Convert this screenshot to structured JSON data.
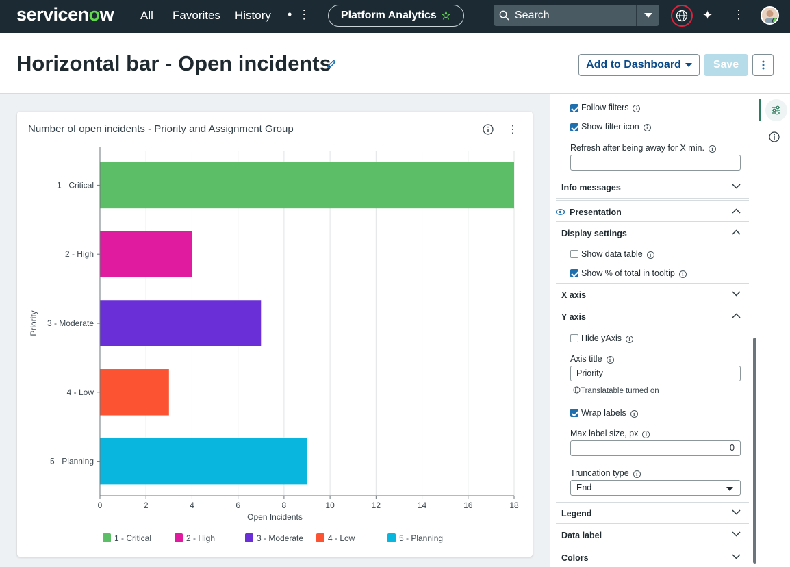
{
  "nav": {
    "logo_a": "servicen",
    "logo_o": "o",
    "logo_b": "w",
    "links": [
      "All",
      "Favorites",
      "History"
    ],
    "more": "• ⋮",
    "app_pill": "Platform Analytics",
    "search_placeholder": "Search"
  },
  "page": {
    "title": "Horizontal bar - Open incidents",
    "add_to_dashboard": "Add to Dashboard",
    "save": "Save"
  },
  "card": {
    "title": "Number of open incidents - Priority and Assignment Group"
  },
  "chart_data": {
    "type": "bar",
    "orientation": "horizontal",
    "categories": [
      "1 - Critical",
      "2 - High",
      "3 - Moderate",
      "4 - Low",
      "5 - Planning"
    ],
    "values": [
      18,
      4,
      7,
      3,
      9
    ],
    "colors": [
      "#5cbf67",
      "#e01ba0",
      "#6a2fd6",
      "#fc5432",
      "#09b6dd"
    ],
    "xlabel": "Open Incidents",
    "ylabel": "Priority",
    "xlim": [
      0,
      18
    ],
    "xticks": [
      0,
      2,
      4,
      6,
      8,
      10,
      12,
      14,
      16,
      18
    ],
    "grid": "vertical",
    "legend": "bottom",
    "legend_entries": [
      "1 - Critical",
      "2 - High",
      "3 - Moderate",
      "4 - Low",
      "5 - Planning"
    ]
  },
  "panel": {
    "follow_filters": "Follow filters",
    "show_filter_icon": "Show filter icon",
    "refresh_label": "Refresh after being away for X min.",
    "refresh_value": "",
    "info_messages": "Info messages",
    "presentation": "Presentation",
    "display_settings": "Display settings",
    "show_data_table": "Show data table",
    "show_pct_tooltip": "Show % of total in tooltip",
    "x_axis": "X axis",
    "y_axis": "Y axis",
    "hide_yaxis": "Hide yAxis",
    "axis_title_label": "Axis title",
    "axis_title_value": "Priority",
    "translatable": "Translatable turned on",
    "wrap_labels": "Wrap labels",
    "max_label_size_label": "Max label size, px",
    "max_label_size_value": "0",
    "truncation_type_label": "Truncation type",
    "truncation_type_value": "End",
    "legend": "Legend",
    "data_label": "Data label",
    "colors": "Colors"
  }
}
